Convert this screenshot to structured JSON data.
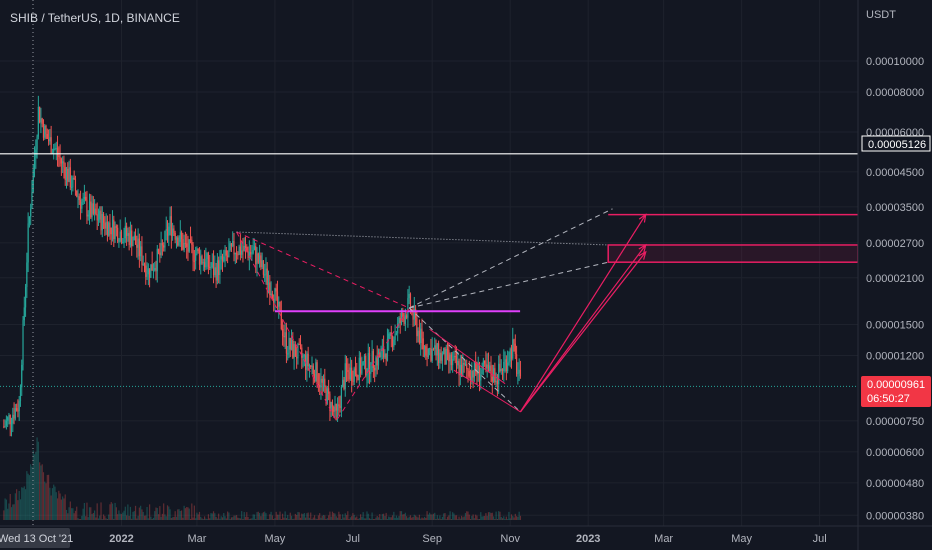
{
  "header": {
    "symbol_title": "SHIB / TetherUS, 1D, BINANCE"
  },
  "axis": {
    "currency": "USDT",
    "price_ticks": [
      "0.00010000",
      "0.00008000",
      "0.00006000",
      "0.00004500",
      "0.00003500",
      "0.00002700",
      "0.00002100",
      "0.00001500",
      "0.00001200",
      "0.00000750",
      "0.00000600",
      "0.00000480",
      "0.00000380"
    ],
    "time_ticks": [
      "2022",
      "Mar",
      "May",
      "Jul",
      "Sep",
      "Nov",
      "2023",
      "Mar",
      "May",
      "Jul"
    ],
    "crosshair_date": "Wed 13 Oct '21",
    "hline_price": "0.00005126",
    "last_price": "0.00000961",
    "countdown": "06:50:27"
  },
  "colors": {
    "background": "#131722",
    "grid": "#1e222d",
    "up": "#26a69a",
    "down": "#ef5350",
    "drawing_pink": "#e91e63",
    "drawing_magenta": "#e040fb",
    "dashed_gray": "#b2b5be",
    "last_price_bg": "#f23645"
  },
  "chart_data": {
    "type": "candlestick",
    "title": "SHIB / TetherUS, 1D, BINANCE",
    "ylabel": "USDT",
    "y_scale": "log",
    "ylim": [
      3.7e-06,
      0.000125
    ],
    "xlim": [
      "2021-09-28",
      "2023-07-31"
    ],
    "grid": true,
    "close_series": {
      "dates": [
        "2021-10-01",
        "2021-10-13",
        "2021-10-20",
        "2021-10-28",
        "2021-11-03",
        "2021-11-10",
        "2021-11-20",
        "2021-12-01",
        "2021-12-10",
        "2021-12-20",
        "2022-01-01",
        "2022-01-10",
        "2022-01-22",
        "2022-02-01",
        "2022-02-08",
        "2022-02-20",
        "2022-03-01",
        "2022-03-15",
        "2022-03-31",
        "2022-04-15",
        "2022-04-30",
        "2022-05-10",
        "2022-05-20",
        "2022-06-01",
        "2022-06-10",
        "2022-06-18",
        "2022-06-25",
        "2022-07-10",
        "2022-07-25",
        "2022-08-14",
        "2022-08-25",
        "2022-09-10",
        "2022-09-25",
        "2022-10-10",
        "2022-10-22",
        "2022-10-28",
        "2022-11-03",
        "2022-11-09"
      ],
      "close": [
        7.2e-06,
        8.5e-06,
        2.9e-05,
        7e-05,
        5.8e-05,
        5.3e-05,
        4.4e-05,
        3.6e-05,
        3.3e-05,
        3.1e-05,
        2.9e-05,
        2.8e-05,
        2.2e-05,
        2.5e-05,
        3.1e-05,
        2.6e-05,
        2.5e-05,
        2.2e-05,
        2.6e-05,
        2.5e-05,
        1.9e-05,
        1.3e-05,
        1.2e-05,
        1.08e-05,
        9.1e-06,
        7.7e-06,
        1.05e-05,
        1.11e-05,
        1.21e-05,
        1.73e-05,
        1.28e-05,
        1.18e-05,
        1.08e-05,
        1.07e-05,
        1.04e-05,
        1.14e-05,
        1.28e-05,
        9.6e-06
      ]
    },
    "volume": {
      "peak_date": "2021-10-27",
      "note": "volume bars along bottom"
    },
    "annotations": [
      {
        "type": "horizontal_line",
        "price": 5.126e-05
      },
      {
        "type": "horizontal_ray",
        "price": 1.65e-05,
        "from": "2022-05-01",
        "to": "2022-10-28"
      },
      {
        "type": "box",
        "from": "2023-01-01",
        "to": "2023-07-31",
        "top": 2.66e-05,
        "bottom": 2.35e-05
      },
      {
        "type": "line",
        "from": "2023-01-01",
        "to": "2023-07-31",
        "price": 3.31e-05
      },
      {
        "type": "dashed_vshape",
        "points": [
          [
            "2022-04-01",
            2.92e-05
          ],
          [
            "2022-06-18",
            7.5e-06
          ],
          [
            "2022-08-14",
            1.69e-05
          ]
        ]
      },
      {
        "type": "arrows",
        "from": [
          "2022-11-09",
          8e-06
        ],
        "to": [
          [
            "2023-02-15",
            3.31e-05
          ],
          [
            "2023-02-15",
            2.66e-05
          ],
          [
            "2023-02-15",
            2.53e-05
          ]
        ]
      }
    ],
    "last_price": 9.61e-06
  }
}
